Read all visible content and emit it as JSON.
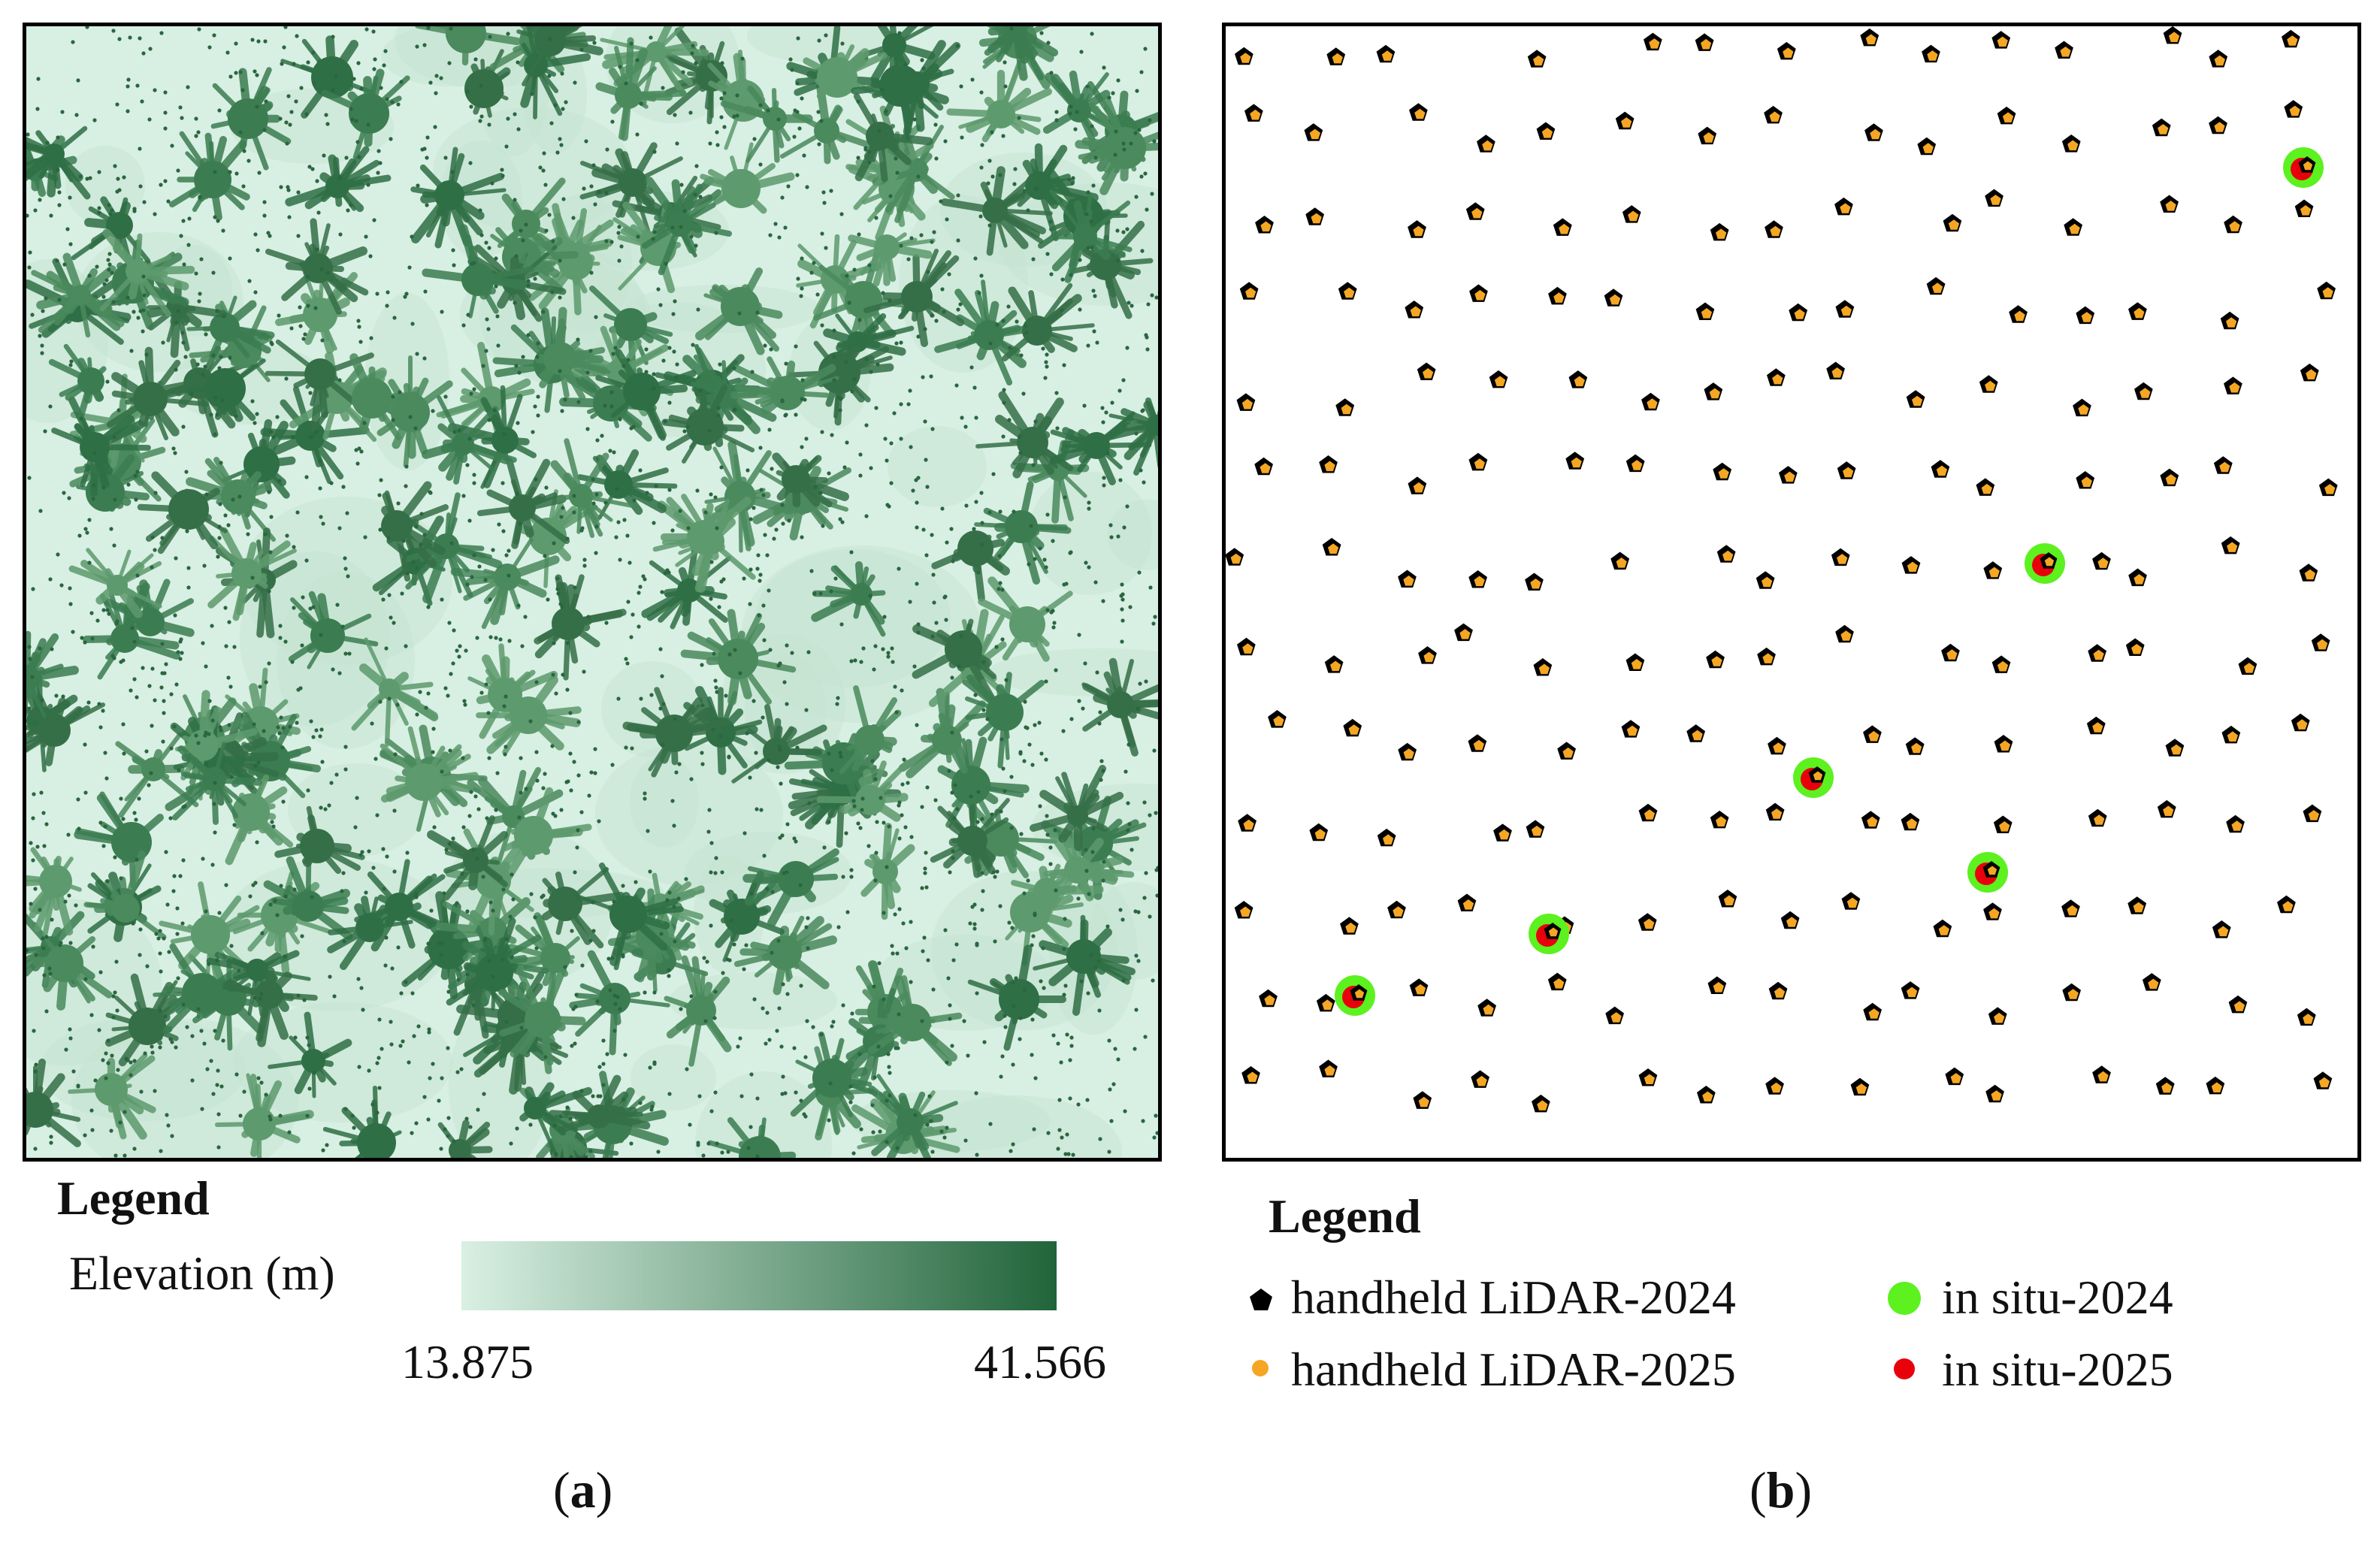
{
  "panel_a": {
    "legend_title": "Legend",
    "field_label": "Elevation (m)",
    "min_label": "13.875",
    "max_label": "41.566",
    "colors": {
      "low": "#d9f0e3",
      "high": "#21643a",
      "canopy": "#2f6f45",
      "ground": "#d8efe3"
    },
    "caption_letter": "a"
  },
  "panel_b": {
    "legend_title": "Legend",
    "items": [
      {
        "label": "handheld LiDAR-2024",
        "symbol": "black-pentagon",
        "color": "#000000"
      },
      {
        "label": "handheld LiDAR-2025",
        "symbol": "orange-dot",
        "color": "#f5a623"
      },
      {
        "label": "in situ-2024",
        "symbol": "green-circle",
        "color": "#5cf11f"
      },
      {
        "label": "in situ-2025",
        "symbol": "red-dot",
        "color": "#e8000b"
      }
    ],
    "caption_letter": "b"
  }
}
